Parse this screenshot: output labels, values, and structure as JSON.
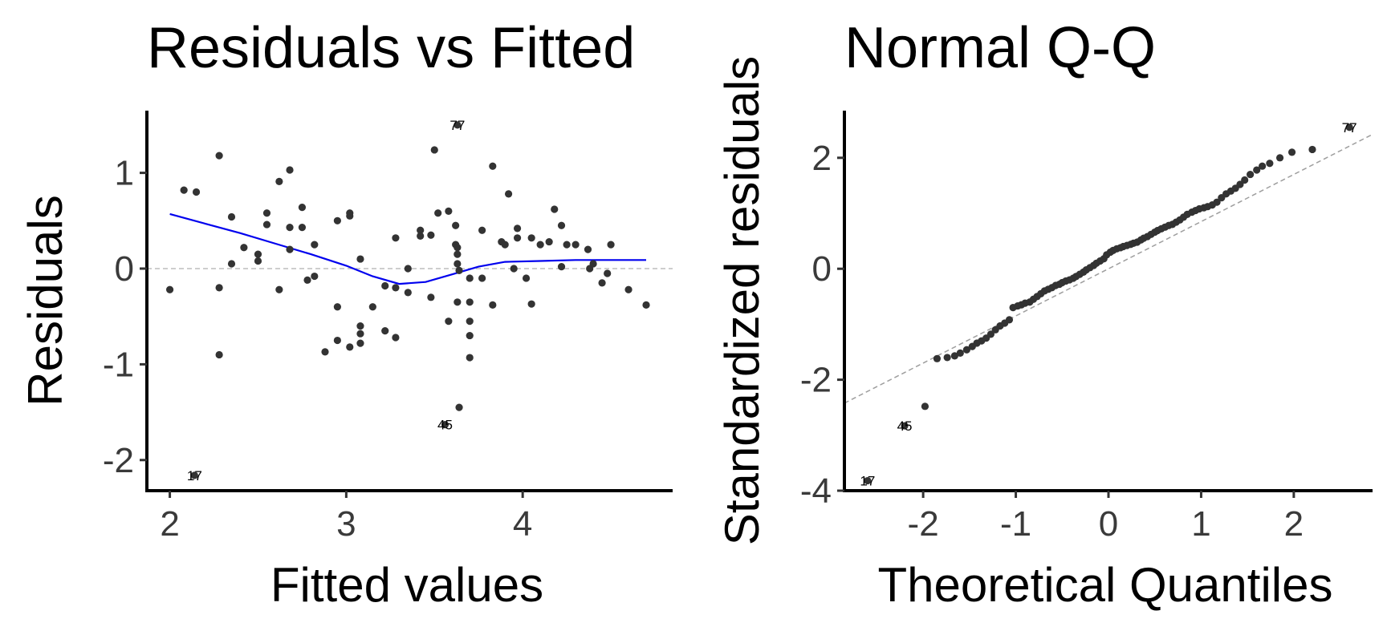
{
  "chart_data": [
    {
      "type": "scatter",
      "title": "Residuals vs Fitted",
      "xlabel": "Fitted values",
      "ylabel": "Residuals",
      "xlim": [
        1.87,
        4.85
      ],
      "ylim": [
        -2.32,
        1.65
      ],
      "xticks": [
        2,
        3,
        4
      ],
      "xtick_labels": [
        "2",
        "3",
        "4"
      ],
      "yticks": [
        -2,
        -1,
        0,
        1
      ],
      "ytick_labels": [
        "-2",
        "-1",
        "0",
        "1"
      ],
      "reference_line": {
        "y": 0,
        "style": "dashed",
        "color": "#bdbdbd"
      },
      "smooth_line": {
        "color": "#0000ee",
        "x": [
          2.0,
          2.2,
          2.4,
          2.6,
          2.8,
          3.0,
          3.15,
          3.3,
          3.45,
          3.6,
          3.75,
          3.9,
          4.1,
          4.3,
          4.5,
          4.7
        ],
        "y": [
          0.57,
          0.47,
          0.37,
          0.26,
          0.15,
          0.03,
          -0.08,
          -0.16,
          -0.14,
          -0.06,
          0.02,
          0.07,
          0.08,
          0.09,
          0.09,
          0.09
        ]
      },
      "point_color": "#333333",
      "points": {
        "x": [
          2.0,
          2.08,
          2.15,
          2.28,
          2.28,
          2.28,
          2.35,
          2.35,
          2.42,
          2.5,
          2.5,
          2.55,
          2.55,
          2.62,
          2.62,
          2.68,
          2.68,
          2.68,
          2.75,
          2.75,
          2.78,
          2.82,
          2.82,
          2.88,
          2.95,
          2.95,
          2.95,
          3.02,
          3.02,
          3.02,
          3.08,
          3.08,
          3.08,
          3.08,
          3.15,
          3.22,
          3.22,
          3.28,
          3.28,
          3.28,
          3.35,
          3.35,
          3.42,
          3.42,
          3.48,
          3.48,
          3.5,
          3.52,
          3.58,
          3.58,
          3.62,
          3.62,
          3.63,
          3.63,
          3.63,
          3.63,
          3.64,
          3.64,
          3.7,
          3.7,
          3.7,
          3.7,
          3.7,
          3.77,
          3.77,
          3.83,
          3.83,
          3.88,
          3.9,
          3.92,
          3.95,
          3.97,
          3.97,
          4.02,
          4.05,
          4.05,
          4.1,
          4.15,
          4.18,
          4.22,
          4.22,
          4.25,
          4.3,
          4.37,
          4.38,
          4.4,
          4.45,
          4.48,
          4.5,
          4.6,
          4.7
        ],
        "y": [
          -0.22,
          0.82,
          0.8,
          1.18,
          -0.2,
          -0.9,
          0.54,
          0.05,
          0.22,
          0.15,
          0.08,
          0.58,
          0.46,
          0.91,
          -0.22,
          1.03,
          0.43,
          0.2,
          0.64,
          0.43,
          -0.12,
          0.25,
          -0.08,
          -0.87,
          0.5,
          -0.4,
          -0.75,
          0.58,
          0.55,
          -0.82,
          0.1,
          -0.6,
          -0.68,
          -0.78,
          -0.4,
          -0.65,
          -0.18,
          0.32,
          -0.2,
          -0.72,
          0.0,
          -0.25,
          0.4,
          0.34,
          0.35,
          -0.3,
          1.24,
          0.58,
          0.6,
          -0.55,
          0.45,
          0.25,
          0.22,
          0.15,
          0.05,
          -0.35,
          -1.45,
          -0.02,
          -0.1,
          -0.35,
          -0.55,
          -0.7,
          -0.93,
          0.4,
          -0.1,
          1.07,
          -0.38,
          0.28,
          0.25,
          0.78,
          0.0,
          0.42,
          0.32,
          -0.1,
          0.32,
          -0.37,
          0.25,
          0.28,
          0.62,
          0.45,
          0.02,
          0.25,
          0.25,
          0.2,
          0.0,
          0.05,
          -0.15,
          -0.05,
          0.25,
          -0.22,
          -0.38
        ]
      },
      "labeled_points": [
        {
          "label": "77",
          "x": 3.63,
          "y": 1.5
        },
        {
          "label": "45",
          "x": 3.56,
          "y": -1.63
        },
        {
          "label": "17",
          "x": 2.14,
          "y": -2.16
        }
      ]
    },
    {
      "type": "scatter",
      "title": "Normal Q-Q",
      "xlabel": "Theoretical Quantiles",
      "ylabel": "Standardized residuals",
      "xlim": [
        -2.85,
        2.85
      ],
      "ylim": [
        -4.0,
        2.85
      ],
      "xticks": [
        -2,
        -1,
        0,
        1,
        2
      ],
      "xtick_labels": [
        "-2",
        "-1",
        "0",
        "1",
        "2"
      ],
      "yticks": [
        -4,
        -2,
        0,
        2
      ],
      "ytick_labels": [
        "-4",
        "-2",
        "0",
        "2"
      ],
      "reference_line": {
        "slope": 0.85,
        "intercept": 0.0,
        "style": "dashed",
        "color": "#9e9e9e"
      },
      "point_color": "#333333",
      "points": {
        "x": [
          -1.98,
          -1.85,
          -1.74,
          -1.66,
          -1.6,
          -1.53,
          -1.47,
          -1.42,
          -1.37,
          -1.32,
          -1.27,
          -1.22,
          -1.17,
          -1.12,
          -1.07,
          -1.03,
          -0.98,
          -0.94,
          -0.9,
          -0.85,
          -0.81,
          -0.77,
          -0.73,
          -0.69,
          -0.65,
          -0.61,
          -0.57,
          -0.53,
          -0.5,
          -0.46,
          -0.42,
          -0.38,
          -0.35,
          -0.31,
          -0.27,
          -0.24,
          -0.2,
          -0.16,
          -0.13,
          -0.09,
          -0.05,
          -0.02,
          0.02,
          0.05,
          0.09,
          0.13,
          0.16,
          0.2,
          0.24,
          0.27,
          0.31,
          0.35,
          0.38,
          0.42,
          0.46,
          0.5,
          0.53,
          0.57,
          0.61,
          0.65,
          0.69,
          0.73,
          0.77,
          0.81,
          0.85,
          0.9,
          0.94,
          0.98,
          1.03,
          1.07,
          1.12,
          1.17,
          1.22,
          1.27,
          1.32,
          1.37,
          1.42,
          1.47,
          1.53,
          1.6,
          1.66,
          1.74,
          1.85,
          1.98,
          2.2
        ],
        "y": [
          -2.48,
          -1.62,
          -1.6,
          -1.57,
          -1.52,
          -1.46,
          -1.4,
          -1.34,
          -1.3,
          -1.25,
          -1.18,
          -1.1,
          -1.03,
          -0.98,
          -0.92,
          -0.7,
          -0.67,
          -0.65,
          -0.62,
          -0.6,
          -0.55,
          -0.5,
          -0.45,
          -0.4,
          -0.37,
          -0.34,
          -0.3,
          -0.28,
          -0.25,
          -0.22,
          -0.2,
          -0.17,
          -0.14,
          -0.1,
          -0.06,
          -0.02,
          0.02,
          0.06,
          0.1,
          0.14,
          0.18,
          0.25,
          0.3,
          0.33,
          0.36,
          0.38,
          0.4,
          0.42,
          0.44,
          0.46,
          0.48,
          0.52,
          0.55,
          0.58,
          0.62,
          0.66,
          0.69,
          0.72,
          0.75,
          0.78,
          0.8,
          0.84,
          0.88,
          0.93,
          0.98,
          1.02,
          1.05,
          1.08,
          1.1,
          1.12,
          1.15,
          1.2,
          1.28,
          1.35,
          1.4,
          1.45,
          1.52,
          1.6,
          1.7,
          1.78,
          1.85,
          1.9,
          2.0,
          2.1,
          2.15
        ]
      },
      "labeled_points": [
        {
          "label": "77",
          "x": 2.6,
          "y": 2.55
        },
        {
          "label": "45",
          "x": -2.2,
          "y": -2.83
        },
        {
          "label": "17",
          "x": -2.6,
          "y": -3.82
        }
      ]
    }
  ]
}
